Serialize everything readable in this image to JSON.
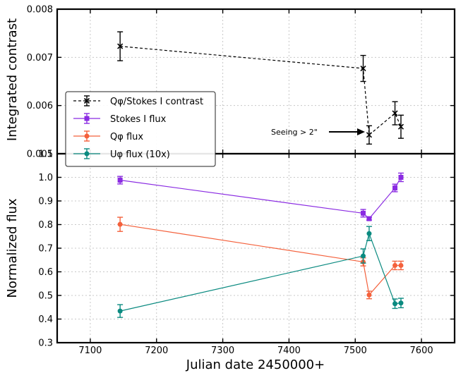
{
  "chart_data": [
    {
      "type": "line",
      "ylabel": "Integrated contrast",
      "ylim": [
        0.005,
        0.008
      ],
      "xlim": [
        7050,
        7650
      ],
      "y_ticks": [
        "0.005",
        "0.006",
        "0.007",
        "0.008"
      ],
      "grid": true,
      "series": [
        {
          "name": "Qφ/Stokes I contrast",
          "color": "#000000",
          "linestyle": "dashed",
          "marker": "x",
          "x": [
            7145,
            7512,
            7521,
            7560,
            7569
          ],
          "y": [
            0.00723,
            0.00677,
            0.00539,
            0.00584,
            0.00556
          ],
          "yerr": [
            0.0003,
            0.00027,
            0.00019,
            0.00024,
            0.00024
          ]
        }
      ],
      "annotation": {
        "text": "Seeing > 2\"",
        "x": 7521,
        "y": 0.00541
      }
    },
    {
      "type": "line",
      "xlabel": "Julian date 2450000+",
      "ylabel": "Normalized flux",
      "ylim": [
        0.3,
        1.1
      ],
      "xlim": [
        7050,
        7650
      ],
      "y_ticks": [
        "0.3",
        "0.4",
        "0.5",
        "0.6",
        "0.7",
        "0.8",
        "0.9",
        "1.0",
        "1.1"
      ],
      "x_ticks": [
        "7100",
        "7200",
        "7300",
        "7400",
        "7500",
        "7600"
      ],
      "grid": true,
      "legend_position": "upper-left",
      "series": [
        {
          "name": "Stokes I flux",
          "color": "#8a2be2",
          "marker": "square",
          "x": [
            7145,
            7512,
            7521,
            7560,
            7569
          ],
          "y": [
            0.988,
            0.848,
            0.825,
            0.955,
            1.0
          ],
          "yerr": [
            0.016,
            0.016,
            0.006,
            0.016,
            0.018
          ]
        },
        {
          "name": "Qφ flux",
          "color": "#f4613c",
          "marker": "circle",
          "x": [
            7145,
            7512,
            7521,
            7560,
            7569
          ],
          "y": [
            0.801,
            0.642,
            0.502,
            0.627,
            0.627
          ],
          "yerr": [
            0.03,
            0.017,
            0.016,
            0.018,
            0.018
          ]
        },
        {
          "name": "Uφ flux (10x)",
          "color": "#0a8a80",
          "marker": "circle",
          "x": [
            7145,
            7512,
            7521,
            7560,
            7569
          ],
          "y": [
            0.434,
            0.667,
            0.762,
            0.465,
            0.468
          ],
          "yerr": [
            0.027,
            0.03,
            0.03,
            0.02,
            0.02
          ]
        }
      ]
    }
  ]
}
